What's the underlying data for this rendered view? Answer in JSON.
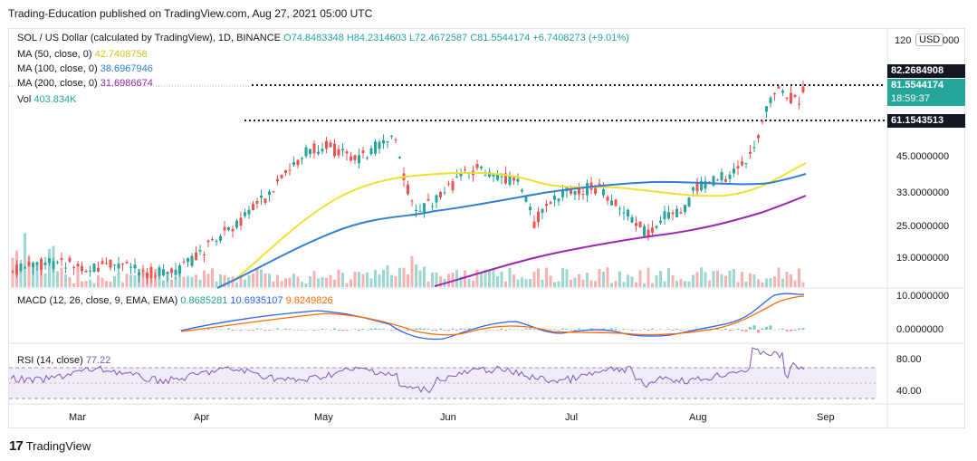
{
  "header": {
    "caption": "Trading-Education published on TradingView.com, Aug 27, 2021 05:00 UTC"
  },
  "legend": {
    "title": "SOL / US Dollar (calculated by TradingView), 1D, BINANCE",
    "open": "O74.8483348",
    "high": "H84.2314603",
    "low": "L72.4672587",
    "close": "C81.5544174",
    "change": "+6.7408273 (+9.01%)",
    "ma50_label": "MA (50, close, 0)",
    "ma50_value": "42.7408758",
    "ma100_label": "MA (100, close, 0)",
    "ma100_value": "38.6967946",
    "ma200_label": "MA (200, close, 0)",
    "ma200_value": "31.6986674",
    "vol_label": "Vol",
    "vol_value": "403.834K"
  },
  "macd": {
    "label": "MACD (12, 26, close, 9, EMA, EMA)",
    "v1": "0.8685281",
    "v2": "10.6935107",
    "v3": "9.8249826"
  },
  "rsi": {
    "label": "RSI (14, close)",
    "value": "77.22"
  },
  "price_axis": {
    "currency_button": "USD",
    "top_label": "120",
    "top_suffix": "000",
    "ticks": [
      "45.0000000",
      "33.0000000",
      "25.0000000",
      "19.0000000"
    ],
    "macd_ticks": [
      "10.0000000",
      "0.0000000"
    ],
    "rsi_ticks": [
      "80.00",
      "40.00"
    ],
    "resistance_label": "82.2684908",
    "last_price": "81.5544174",
    "countdown": "18:59:37",
    "support_label": "61.1543513"
  },
  "time_axis": {
    "labels": [
      "Mar",
      "Apr",
      "May",
      "Jun",
      "Jul",
      "Aug",
      "Sep"
    ]
  },
  "brand": {
    "name": "TradingView"
  },
  "colors": {
    "up": "#26a69a",
    "down": "#ef5350",
    "ma50": "#f2e033",
    "ma100": "#2f7fd8",
    "ma200": "#9c27b0"
  }
}
